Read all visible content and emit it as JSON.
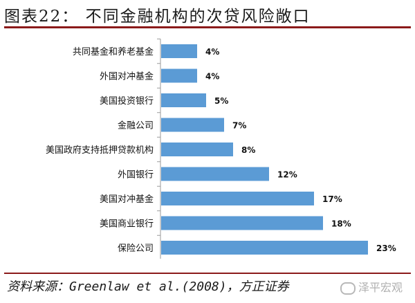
{
  "header": {
    "title": "图表22：  不同金融机构的次贷风险敞口"
  },
  "chart_data": {
    "type": "bar",
    "orientation": "horizontal",
    "title": "",
    "xlabel": "",
    "ylabel": "",
    "categories": [
      "共同基金和养老基金",
      "外国对冲基金",
      "美国投资银行",
      "金融公司",
      "美国政府支持抵押贷款机构",
      "外国银行",
      "美国对冲基金",
      "美国商业银行",
      "保险公司"
    ],
    "values": [
      4,
      4,
      5,
      7,
      8,
      12,
      17,
      18,
      23
    ],
    "value_labels": [
      "4%",
      "4%",
      "5%",
      "7%",
      "8%",
      "12%",
      "17%",
      "18%",
      "23%"
    ],
    "unit": "%",
    "xlim": [
      0,
      23
    ],
    "grid": false,
    "legend": "none",
    "bar_color": "#5B9BD5"
  },
  "footer": {
    "source": "资料来源：Greenlaw et al.(2008)，方正证券",
    "watermark": "泽平宏观"
  }
}
